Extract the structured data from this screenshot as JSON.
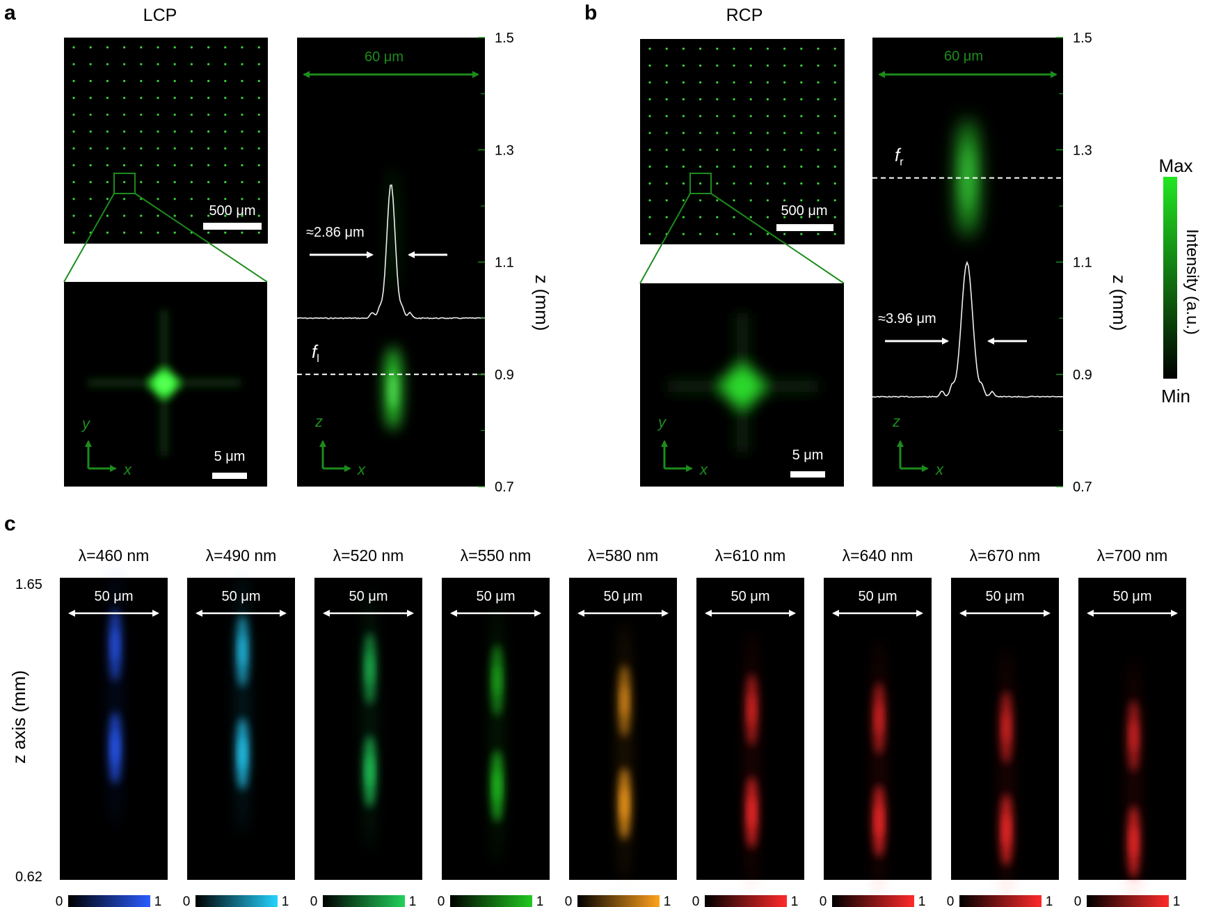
{
  "panels": {
    "a": {
      "letter": "a",
      "polarization": "LCP",
      "array_scale": "500 μm",
      "zoom_scale": "5 μm",
      "width_label": "60 μm",
      "fwhm": "≈2.86 μm",
      "focus_label": "f",
      "focus_sub": "l",
      "focus_z_mm": 0.9,
      "peak_z_mm": 1.24,
      "profile_base_z_mm": 1.0,
      "axes_xy": {
        "vertical": "y",
        "horizontal": "x"
      },
      "axes_xz": {
        "vertical": "z",
        "horizontal": "x"
      },
      "z_ticks": [
        "1.5",
        "1.3",
        "1.1",
        "0.9",
        "0.7"
      ],
      "z_label": "z (mm)"
    },
    "b": {
      "letter": "b",
      "polarization": "RCP",
      "array_scale": "500 μm",
      "zoom_scale": "5 μm",
      "width_label": "60 μm",
      "fwhm": "≈3.96 μm",
      "focus_label": "f",
      "focus_sub": "r",
      "focus_z_mm": 1.25,
      "peak_z_mm": 1.1,
      "profile_base_z_mm": 0.86,
      "axes_xy": {
        "vertical": "y",
        "horizontal": "x"
      },
      "axes_xz": {
        "vertical": "z",
        "horizontal": "x"
      },
      "z_ticks": [
        "1.5",
        "1.3",
        "1.1",
        "0.9",
        "0.7"
      ],
      "z_label": "z (mm)"
    }
  },
  "z_range_mm": [
    0.7,
    1.5
  ],
  "colorbar": {
    "max_label": "Max",
    "min_label": "Min",
    "title": "Intensity (a.u.)",
    "color": "#22e622"
  },
  "panel_c": {
    "letter": "c",
    "z_axis_label": "z axis (mm)",
    "z_top": "1.65",
    "z_bottom": "0.62",
    "z_range_mm": [
      0.62,
      1.65
    ],
    "width_label": "50 μm",
    "cbar_min": "0",
    "cbar_max": "1",
    "wavelengths": [
      {
        "label": "λ=460 nm",
        "color": "#2a5cff",
        "focus_z_mm": [
          1.42,
          1.07
        ],
        "intensity": [
          0.7,
          0.95
        ]
      },
      {
        "label": "λ=490 nm",
        "color": "#25d3ff",
        "focus_z_mm": [
          1.4,
          1.05
        ],
        "intensity": [
          0.7,
          0.95
        ]
      },
      {
        "label": "λ=520 nm",
        "color": "#22d15c",
        "focus_z_mm": [
          1.34,
          0.99
        ],
        "intensity": [
          0.6,
          0.9
        ]
      },
      {
        "label": "λ=550 nm",
        "color": "#22c922",
        "focus_z_mm": [
          1.3,
          0.94
        ],
        "intensity": [
          0.55,
          0.9
        ]
      },
      {
        "label": "λ=580 nm",
        "color": "#ffa21c",
        "focus_z_mm": [
          1.23,
          0.88
        ],
        "intensity": [
          0.55,
          0.95
        ]
      },
      {
        "label": "λ=610 nm",
        "color": "#ff2a2a",
        "focus_z_mm": [
          1.2,
          0.85
        ],
        "intensity": [
          0.6,
          0.95
        ]
      },
      {
        "label": "λ=640 nm",
        "color": "#ff2a2a",
        "focus_z_mm": [
          1.17,
          0.82
        ],
        "intensity": [
          0.6,
          0.95
        ]
      },
      {
        "label": "λ=670 nm",
        "color": "#ff2a2a",
        "focus_z_mm": [
          1.14,
          0.79
        ],
        "intensity": [
          0.6,
          0.95
        ]
      },
      {
        "label": "λ=700 nm",
        "color": "#ff2a2a",
        "focus_z_mm": [
          1.11,
          0.75
        ],
        "intensity": [
          0.55,
          0.9
        ]
      }
    ]
  }
}
